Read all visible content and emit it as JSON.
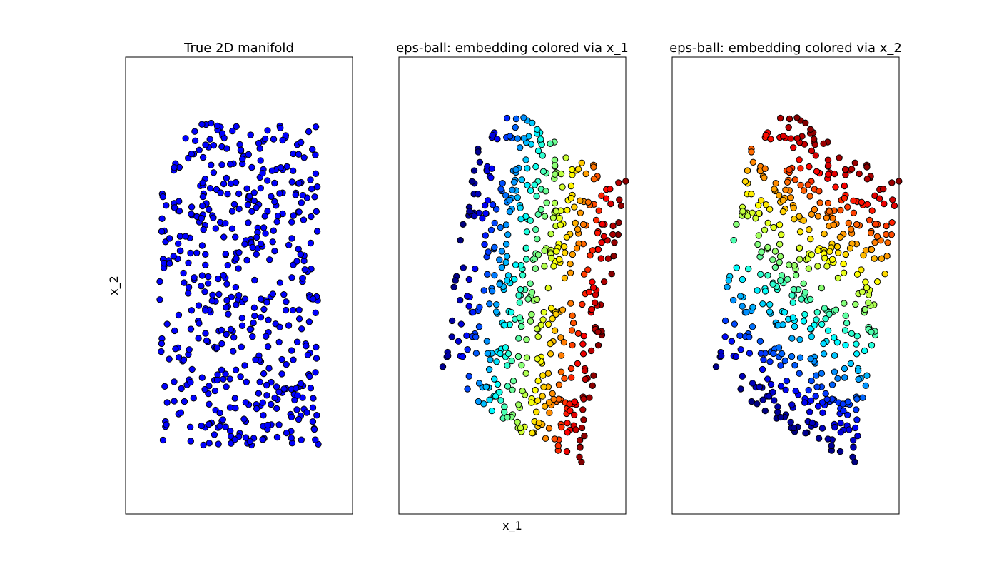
{
  "figure": {
    "xlabel": "x_1",
    "ylabel": "x_2"
  },
  "chart_data": [
    {
      "type": "scatter",
      "title": "True 2D manifold",
      "point_count": 500,
      "x_range": [
        0,
        1
      ],
      "y_range": [
        0,
        2
      ],
      "marker_color": "#0000ff",
      "color_mode": "uniform",
      "axes_ticks": "none",
      "grid": false
    },
    {
      "type": "scatter",
      "title": "eps-ball: embedding colored via x_1",
      "point_count": 500,
      "colormap": "jet",
      "color_mode": "by_x1",
      "axes_ticks": "none",
      "grid": false
    },
    {
      "type": "scatter",
      "title": "eps-ball: embedding colored via x_2",
      "point_count": 500,
      "colormap": "jet",
      "color_mode": "by_x2",
      "axes_ticks": "none",
      "grid": false
    }
  ]
}
